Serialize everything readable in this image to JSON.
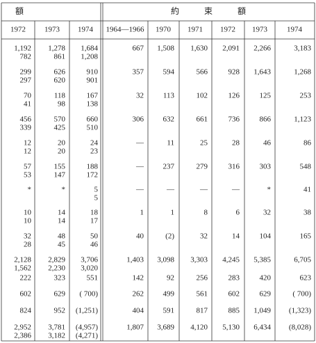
{
  "header": {
    "left_title": "額",
    "right_title": "約　　　束　　　額",
    "left_years": [
      "1972",
      "1973",
      "1974"
    ],
    "right_years": [
      "1964—1966",
      "1970",
      "1971",
      "1972",
      "1973",
      "1974"
    ]
  },
  "rows": [
    {
      "left": [
        [
          "1,192",
          "782"
        ],
        [
          "1,278",
          "861"
        ],
        [
          "1,684",
          "1,208"
        ]
      ],
      "right": [
        "667",
        "1,508",
        "1,630",
        "2,091",
        "2,266",
        "3,183"
      ]
    },
    {
      "left": [
        [
          "299",
          "297"
        ],
        [
          "626",
          "620"
        ],
        [
          "910",
          "901"
        ]
      ],
      "right": [
        "357",
        "594",
        "566",
        "928",
        "1,643",
        "1,268"
      ]
    },
    {
      "left": [
        [
          "70",
          "41"
        ],
        [
          "118",
          "98"
        ],
        [
          "167",
          "138"
        ]
      ],
      "right": [
        "32",
        "113",
        "102",
        "126",
        "125",
        "253"
      ]
    },
    {
      "left": [
        [
          "456",
          "339"
        ],
        [
          "570",
          "425"
        ],
        [
          "660",
          "510"
        ]
      ],
      "right": [
        "306",
        "632",
        "661",
        "736",
        "866",
        "1,123"
      ]
    },
    {
      "left": [
        [
          "12",
          "12"
        ],
        [
          "20",
          "20"
        ],
        [
          "24",
          "23"
        ]
      ],
      "right": [
        "—",
        "11",
        "25",
        "28",
        "46",
        "86"
      ]
    },
    {
      "left": [
        [
          "57",
          "53"
        ],
        [
          "155",
          "147"
        ],
        [
          "188",
          "172"
        ]
      ],
      "right": [
        "—",
        "237",
        "279",
        "316",
        "303",
        "548"
      ]
    },
    {
      "left": [
        [
          "*"
        ],
        [
          "*"
        ],
        [
          "5",
          "5"
        ]
      ],
      "right": [
        "—",
        "—",
        "—",
        "—",
        "*",
        "41"
      ]
    },
    {
      "left": [
        [
          "10",
          "10"
        ],
        [
          "14",
          "14"
        ],
        [
          "18",
          "17"
        ]
      ],
      "right": [
        "1",
        "1",
        "8",
        "6",
        "32",
        "38"
      ]
    },
    {
      "left": [
        [
          "32",
          "28"
        ],
        [
          "48",
          "45"
        ],
        [
          "50",
          "46"
        ]
      ],
      "right": [
        "40",
        "(2)",
        "32",
        "14",
        "104",
        "165"
      ]
    },
    {
      "left": [
        [
          "2,128",
          "1,562"
        ],
        [
          "2,829",
          "2,230"
        ],
        [
          "3,706",
          "3,020"
        ]
      ],
      "right": [
        "1,403",
        "3,098",
        "3,303",
        "4,245",
        "5,385",
        "6,705"
      ]
    },
    {
      "left": [
        [
          "222"
        ],
        [
          "323"
        ],
        [
          "551"
        ]
      ],
      "right": [
        "142",
        "92",
        "256",
        "283",
        "420",
        "623"
      ]
    },
    {
      "left": [
        [
          "602"
        ],
        [
          "629"
        ],
        [
          "( 700)"
        ]
      ],
      "right": [
        "262",
        "499",
        "561",
        "602",
        "629",
        "( 700)"
      ]
    },
    {
      "left": [
        [
          "824"
        ],
        [
          "952"
        ],
        [
          "(1,251)"
        ]
      ],
      "right": [
        "404",
        "591",
        "817",
        "885",
        "1,049",
        "(1,323)"
      ]
    },
    {
      "left": [
        [
          "2,952",
          "2,386"
        ],
        [
          "3,781",
          "3,182"
        ],
        [
          "(4,957)",
          "(4,271)"
        ]
      ],
      "right": [
        "1,807",
        "3,689",
        "4,120",
        "5,130",
        "6,434",
        "(8,028)"
      ]
    }
  ]
}
